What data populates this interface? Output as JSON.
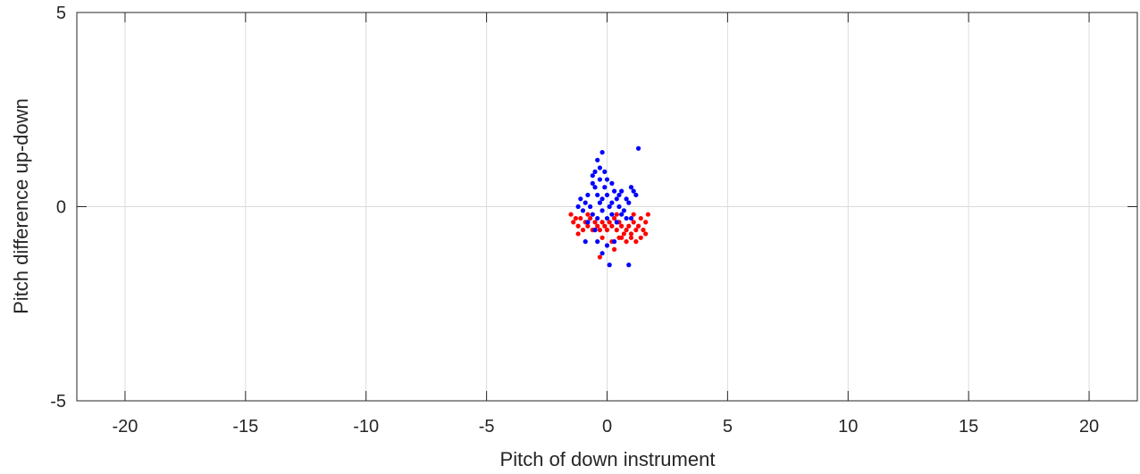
{
  "chart_data": {
    "type": "scatter",
    "title": "",
    "xlabel": "Pitch of down instrument",
    "ylabel": "Pitch difference up-down",
    "xlim": [
      -22,
      22
    ],
    "ylim": [
      -5,
      5
    ],
    "xticks": [
      -20,
      -15,
      -10,
      -5,
      0,
      5,
      10,
      15,
      20
    ],
    "xtick_labels": [
      "-20",
      "-15",
      "-10",
      "-5",
      "0",
      "5",
      "10",
      "15",
      "20"
    ],
    "yticks": [
      -5,
      0,
      5
    ],
    "ytick_labels": [
      "-5",
      "0",
      "5"
    ],
    "grid": true,
    "series": [
      {
        "color": "#ff0000",
        "points": [
          [
            -1.5,
            -0.2
          ],
          [
            -1.4,
            -0.4
          ],
          [
            -1.3,
            -0.3
          ],
          [
            -1.2,
            -0.5
          ],
          [
            -1.1,
            -0.3
          ],
          [
            -1.0,
            -0.6
          ],
          [
            -0.9,
            -0.4
          ],
          [
            -0.8,
            -0.5
          ],
          [
            -0.7,
            -0.3
          ],
          [
            -0.6,
            -0.6
          ],
          [
            -0.5,
            -0.4
          ],
          [
            -0.4,
            -0.5
          ],
          [
            -0.3,
            -0.6
          ],
          [
            -0.2,
            -0.4
          ],
          [
            -0.1,
            -0.5
          ],
          [
            0.0,
            -0.6
          ],
          [
            0.1,
            -0.4
          ],
          [
            0.2,
            -0.5
          ],
          [
            0.3,
            -0.3
          ],
          [
            0.4,
            -0.6
          ],
          [
            0.5,
            -0.4
          ],
          [
            0.6,
            -0.5
          ],
          [
            0.7,
            -0.7
          ],
          [
            0.8,
            -0.6
          ],
          [
            0.9,
            -0.5
          ],
          [
            1.0,
            -0.7
          ],
          [
            1.1,
            -0.4
          ],
          [
            1.2,
            -0.6
          ],
          [
            1.3,
            -0.5
          ],
          [
            1.4,
            -0.3
          ],
          [
            1.5,
            -0.6
          ],
          [
            1.6,
            -0.4
          ],
          [
            1.7,
            -0.2
          ],
          [
            1.4,
            -0.8
          ],
          [
            1.2,
            -0.9
          ],
          [
            1.0,
            -0.8
          ],
          [
            0.8,
            -0.9
          ],
          [
            0.5,
            -0.8
          ],
          [
            0.3,
            -1.1
          ],
          [
            0.2,
            -0.9
          ],
          [
            -0.2,
            -0.8
          ],
          [
            -1.2,
            -0.7
          ],
          [
            -0.3,
            -1.3
          ],
          [
            0.6,
            -0.8
          ],
          [
            1.6,
            -0.7
          ],
          [
            1.1,
            -0.2
          ],
          [
            -0.8,
            -0.2
          ],
          [
            0.4,
            -0.2
          ]
        ]
      },
      {
        "color": "#0000ff",
        "points": [
          [
            -0.2,
            1.4
          ],
          [
            -0.4,
            1.2
          ],
          [
            -0.3,
            1.0
          ],
          [
            -0.5,
            0.9
          ],
          [
            -0.1,
            0.9
          ],
          [
            -0.6,
            0.8
          ],
          [
            -0.3,
            0.7
          ],
          [
            0.0,
            0.7
          ],
          [
            0.2,
            0.6
          ],
          [
            -0.5,
            0.5
          ],
          [
            -0.1,
            0.5
          ],
          [
            0.3,
            0.4
          ],
          [
            0.6,
            0.4
          ],
          [
            -0.8,
            0.3
          ],
          [
            -0.4,
            0.3
          ],
          [
            0.0,
            0.3
          ],
          [
            0.4,
            0.2
          ],
          [
            0.8,
            0.2
          ],
          [
            1.0,
            0.5
          ],
          [
            1.1,
            0.4
          ],
          [
            1.2,
            0.3
          ],
          [
            0.9,
            0.1
          ],
          [
            -1.1,
            0.2
          ],
          [
            -0.9,
            0.1
          ],
          [
            -1.2,
            0.0
          ],
          [
            -0.7,
            0.0
          ],
          [
            -0.3,
            0.1
          ],
          [
            0.1,
            0.0
          ],
          [
            0.5,
            0.0
          ],
          [
            0.7,
            -0.1
          ],
          [
            -1.0,
            -0.1
          ],
          [
            -0.6,
            -0.2
          ],
          [
            -0.2,
            -0.1
          ],
          [
            0.2,
            -0.2
          ],
          [
            0.6,
            -0.2
          ],
          [
            1.0,
            -0.3
          ],
          [
            -0.8,
            -0.4
          ],
          [
            -0.4,
            -0.3
          ],
          [
            0.0,
            -0.3
          ],
          [
            0.4,
            -0.4
          ],
          [
            0.8,
            -0.3
          ],
          [
            -0.5,
            -0.6
          ],
          [
            -0.9,
            -0.9
          ],
          [
            -0.4,
            -0.9
          ],
          [
            0.0,
            -1.0
          ],
          [
            0.3,
            -0.9
          ],
          [
            -0.2,
            -1.2
          ],
          [
            0.9,
            -1.5
          ],
          [
            0.1,
            -1.5
          ],
          [
            1.3,
            1.5
          ],
          [
            -0.6,
            0.6
          ],
          [
            0.5,
            0.3
          ],
          [
            -0.2,
            0.2
          ],
          [
            0.2,
            0.1
          ]
        ]
      }
    ]
  }
}
